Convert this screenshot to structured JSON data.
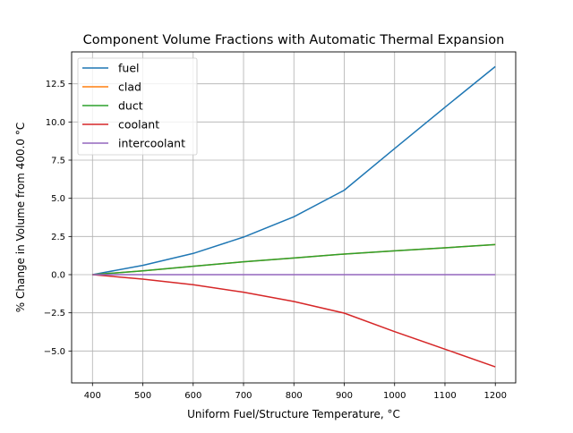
{
  "chart_data": {
    "type": "line",
    "title": "Component Volume Fractions with Automatic Thermal Expansion",
    "xlabel": "Uniform Fuel/Structure Temperature, °C",
    "ylabel": "% Change in Volume from 400.0 °C",
    "xlim": [
      358.6,
      1240.5
    ],
    "ylim": [
      -7.09,
      14.59
    ],
    "xticks": [
      400,
      500,
      600,
      700,
      800,
      900,
      1000,
      1100,
      1200
    ],
    "xtick_labels": [
      "400",
      "500",
      "600",
      "700",
      "800",
      "900",
      "1000",
      "1100",
      "1200"
    ],
    "yticks": [
      -5,
      -2.5,
      0,
      2.5,
      5,
      7.5,
      10,
      12.5
    ],
    "ytick_labels": [
      "−5.0",
      "−2.5",
      "0.0",
      "2.5",
      "5.0",
      "7.5",
      "10.0",
      "12.5"
    ],
    "grid": true,
    "legend_position": "top-left",
    "x": [
      400,
      500,
      600,
      700,
      800,
      900,
      1000,
      1100,
      1200
    ],
    "series": [
      {
        "name": "fuel",
        "color": "#1f77b4",
        "values": [
          0,
          0.61,
          1.39,
          2.46,
          3.79,
          5.53,
          8.26,
          10.96,
          13.63
        ]
      },
      {
        "name": "clad",
        "color": "#ff7f0e",
        "values": [
          0,
          0.25,
          0.55,
          0.84,
          1.09,
          1.35,
          1.56,
          1.76,
          1.97
        ]
      },
      {
        "name": "duct",
        "color": "#2ca02c",
        "values": [
          0,
          0.25,
          0.55,
          0.84,
          1.09,
          1.35,
          1.56,
          1.76,
          1.97
        ]
      },
      {
        "name": "coolant",
        "color": "#d62728",
        "values": [
          0,
          -0.29,
          -0.66,
          -1.15,
          -1.76,
          -2.52,
          -3.73,
          -4.88,
          -6.04
        ]
      },
      {
        "name": "intercoolant",
        "color": "#9467bd",
        "values": [
          0,
          0,
          0,
          0,
          0,
          0,
          0,
          0,
          0
        ]
      }
    ]
  }
}
